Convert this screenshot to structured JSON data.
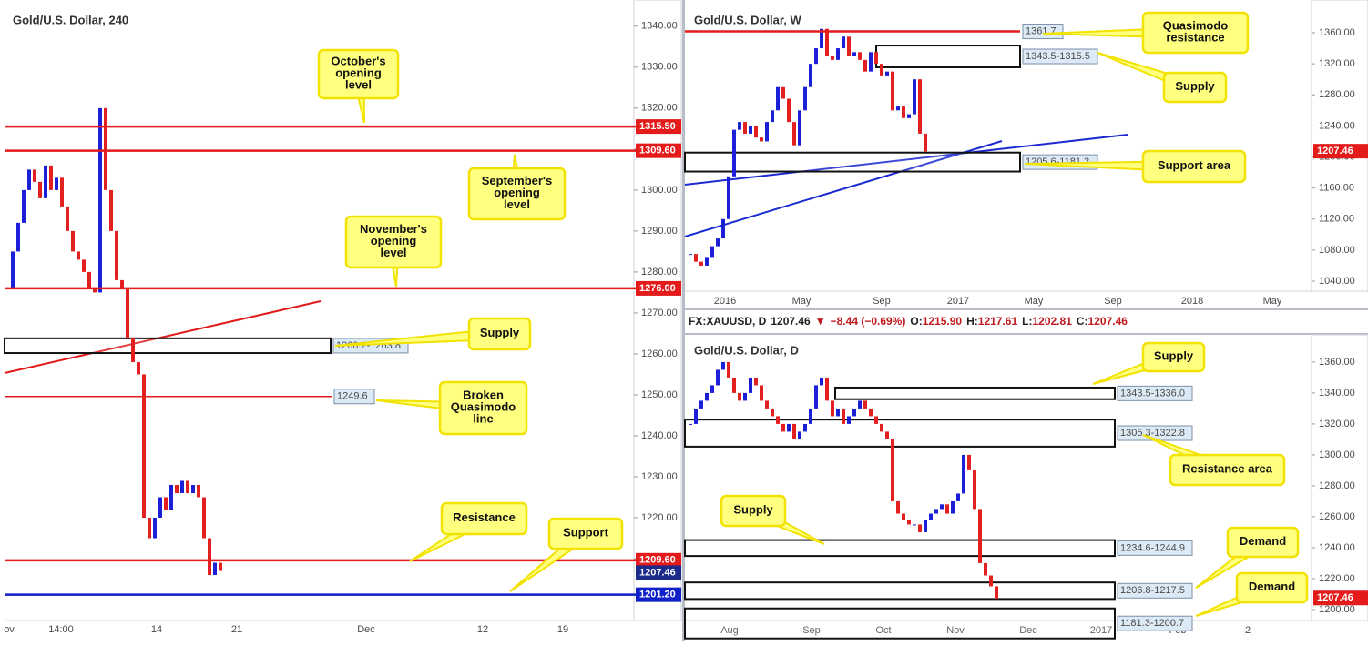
{
  "info_bar": [
    "FX:XAUUSD, D",
    "1207.46",
    "▼",
    "−8.44 (−0.69%)",
    "O:",
    "1215.90",
    "H:",
    "1217.61",
    "L:",
    "1202.81",
    "C:",
    "1207.46"
  ],
  "panels": [
    {
      "title": "Gold/U.S. Dollar, 240",
      "ylim": [
        1194.9,
        1346.4
      ],
      "yticks": [
        1210,
        1220,
        1230,
        1240,
        1250,
        1260,
        1270,
        1280,
        1290,
        1300,
        1310,
        1320,
        1330,
        1340
      ],
      "yticks_labels": [
        "1210.00",
        "1220.00",
        "1230.00",
        "1240.00",
        "1250.00",
        "1260.00",
        "1270.00",
        "1280.00",
        "1290.00",
        "1300.00",
        "1310.00",
        "1320.00",
        "1330.00",
        "1340.00"
      ],
      "xlabels": [
        "ov",
        "14:00",
        "14",
        "21",
        "Dec",
        "12",
        "19"
      ],
      "closes": [
        1276,
        1285,
        1292,
        1300,
        1305,
        1302,
        1298,
        1306,
        1300,
        1303,
        1296,
        1290,
        1285,
        1283,
        1280,
        1276,
        1275,
        1320,
        1300,
        1290,
        1278,
        1276,
        1264,
        1258,
        1255,
        1220,
        1215,
        1220,
        1225,
        1222,
        1228,
        1226,
        1229,
        1226,
        1228,
        1225,
        1215,
        1206,
        1209,
        1207
      ],
      "levels": [
        {
          "value": 1315.5,
          "label": "1315.50",
          "color": "#e31b1b"
        },
        {
          "value": 1309.6,
          "label": "1309.60",
          "color": "#e31b1b"
        },
        {
          "value": 1276,
          "label": "1276.00",
          "color": "#e31b1b"
        },
        {
          "value": 1249.6,
          "label": "1249.6",
          "color": "#e31b1b"
        },
        {
          "value": 1209.6,
          "label": "1209.60",
          "color": "#e31b1b"
        },
        {
          "value": 1201.2,
          "label": "1201.20",
          "color": "#1020c8"
        }
      ],
      "last": {
        "value": 1207.46,
        "label": "1207.46",
        "color": "#1a2a8a"
      },
      "zones": [
        {
          "low": 1260.2,
          "high": 1263.8,
          "label": "1260.2-1263.8"
        }
      ],
      "callouts": [
        [
          "October's",
          "opening",
          "level"
        ],
        [
          "September's",
          "opening",
          "level"
        ],
        [
          "November's",
          "opening",
          "level"
        ],
        [
          "Supply"
        ],
        [
          "Broken",
          "Quasimodo",
          "line"
        ],
        [
          "Resistance"
        ],
        [
          "Support"
        ]
      ]
    },
    {
      "title": "Gold/U.S. Dollar, W",
      "ylim": [
        1027.1,
        1402.2
      ],
      "yticks": [
        1040,
        1080,
        1120,
        1160,
        1200,
        1240,
        1280,
        1320,
        1360
      ],
      "yticks_labels": [
        "1040.00",
        "1080.00",
        "1120.00",
        "1160.00",
        "1200.00",
        "1240.00",
        "1280.00",
        "1320.00",
        "1360.00"
      ],
      "xlabels": [
        "2016",
        "May",
        "Sep",
        "2017",
        "May",
        "Sep",
        "2018",
        "May"
      ],
      "closes": [
        1075,
        1065,
        1060,
        1070,
        1085,
        1095,
        1120,
        1175,
        1235,
        1245,
        1230,
        1240,
        1225,
        1220,
        1245,
        1260,
        1290,
        1275,
        1245,
        1215,
        1260,
        1290,
        1320,
        1340,
        1365,
        1330,
        1325,
        1340,
        1355,
        1330,
        1335,
        1325,
        1310,
        1335,
        1320,
        1305,
        1310,
        1260,
        1265,
        1250,
        1255,
        1300,
        1230,
        1207
      ],
      "levels": [
        {
          "value": 1361.7,
          "label": "1361.7",
          "color": "#e31b1b"
        }
      ],
      "last": {
        "value": 1207.46,
        "label": "1207.46",
        "color": "#e31b1b"
      },
      "zones": [
        {
          "low": 1315.5,
          "high": 1343.5,
          "label": "1343.5-1315.5"
        },
        {
          "low": 1181.2,
          "high": 1205.6,
          "label": "1205.6-1181.2"
        }
      ],
      "callouts": [
        [
          "Quasimodo",
          "resistance"
        ],
        [
          "Supply"
        ],
        [
          "Support area"
        ]
      ]
    },
    {
      "title": "Gold/U.S. Dollar, D",
      "ylim": [
        1192.9,
        1377.6
      ],
      "yticks": [
        1200,
        1220,
        1240,
        1260,
        1280,
        1300,
        1320,
        1340,
        1360
      ],
      "yticks_labels": [
        "1200.00",
        "1220.00",
        "1240.00",
        "1260.00",
        "1280.00",
        "1300.00",
        "1320.00",
        "1340.00",
        "1360.00"
      ],
      "xlabels": [
        "Aug",
        "Sep",
        "Oct",
        "Nov",
        "Dec",
        "2017",
        "Feb",
        "2"
      ],
      "closes": [
        1320,
        1330,
        1335,
        1340,
        1345,
        1355,
        1360,
        1350,
        1340,
        1335,
        1340,
        1350,
        1345,
        1335,
        1330,
        1325,
        1320,
        1315,
        1320,
        1310,
        1315,
        1320,
        1330,
        1345,
        1350,
        1335,
        1325,
        1330,
        1320,
        1325,
        1330,
        1335,
        1330,
        1325,
        1320,
        1315,
        1310,
        1270,
        1262,
        1258,
        1255,
        1255,
        1250,
        1258,
        1262,
        1265,
        1268,
        1262,
        1270,
        1275,
        1300,
        1290,
        1265,
        1230,
        1222,
        1215,
        1207
      ],
      "levels": [],
      "last": {
        "value": 1207.46,
        "label": "1207.46",
        "color": "#e31b1b"
      },
      "zones": [
        {
          "low": 1336.0,
          "high": 1343.5,
          "label": "1343.5-1336.0"
        },
        {
          "low": 1305.3,
          "high": 1322.8,
          "label": "1305.3-1322.8"
        },
        {
          "low": 1234.6,
          "high": 1244.9,
          "label": "1234.6-1244.9"
        },
        {
          "low": 1206.8,
          "high": 1217.5,
          "label": "1206.8-1217.5"
        },
        {
          "low": 1181.3,
          "high": 1200.7,
          "label": "1181.3-1200.7"
        }
      ],
      "callouts": [
        [
          "Supply"
        ],
        [
          "Resistance area"
        ],
        [
          "Supply"
        ],
        [
          "Demand"
        ],
        [
          "Demand"
        ]
      ]
    }
  ]
}
